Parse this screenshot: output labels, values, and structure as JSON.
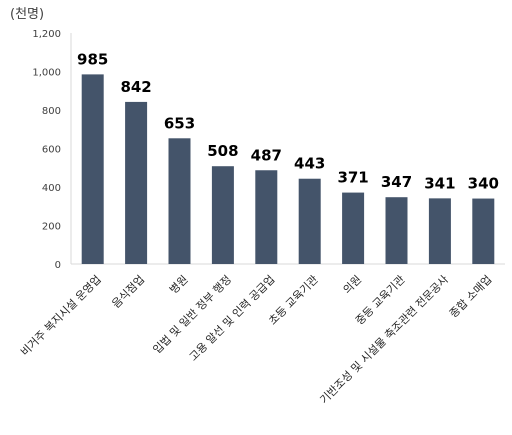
{
  "chart_data": {
    "type": "bar",
    "unit_label": "(천명)",
    "categories": [
      "비거주 복지시설 운영업",
      "음식점업",
      "병원",
      "입법 및 일반 정부 행정",
      "고용 알선 및 인력 공급업",
      "초등 교육기관",
      "의원",
      "중등 교육기관",
      "기반조성 및 시설물 축조관련 전문공사",
      "종합 소매업"
    ],
    "values": [
      985,
      842,
      653,
      508,
      487,
      443,
      371,
      347,
      341,
      340
    ],
    "ylim": [
      0,
      1200
    ],
    "yticks": [
      "0",
      "200",
      "400",
      "600",
      "800",
      "1,000",
      "1,200"
    ],
    "bar_color": "#44546A",
    "grid": false,
    "legend": "none"
  }
}
